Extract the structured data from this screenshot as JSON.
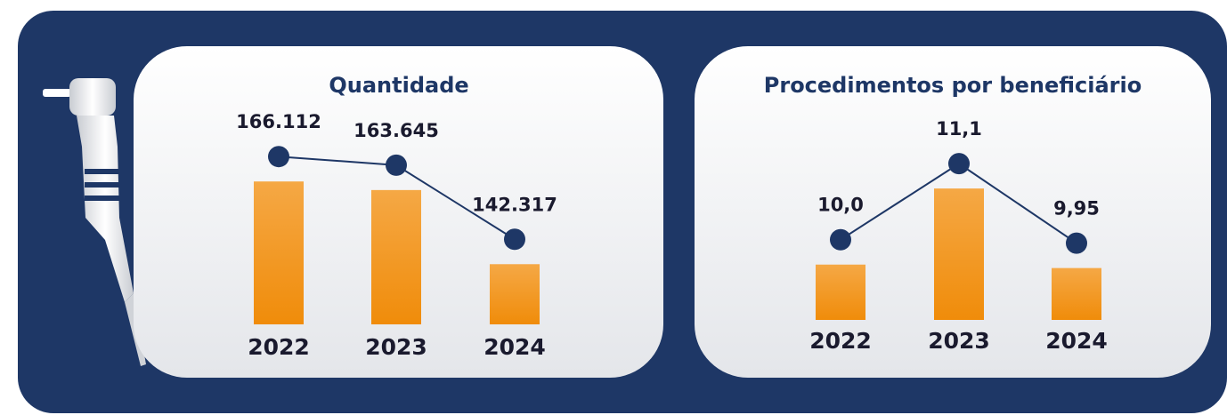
{
  "chart_data": [
    {
      "type": "bar",
      "title": "Quantidade",
      "categories": [
        "2022",
        "2023",
        "2024"
      ],
      "values": [
        166112,
        163645,
        142317
      ],
      "value_labels": [
        "166.112",
        "163.645",
        "142.317"
      ],
      "color": "#f39c25",
      "line_color": "#1e3766",
      "ylim": [
        125000,
        170000
      ]
    },
    {
      "type": "bar",
      "title": "Procedimentos por beneficiário",
      "categories": [
        "2022",
        "2023",
        "2024"
      ],
      "values": [
        10.0,
        11.1,
        9.95
      ],
      "value_labels": [
        "10,0",
        "11,1",
        "9,95"
      ],
      "color": "#f39c25",
      "line_color": "#1e3766",
      "ylim": [
        9.2,
        11.5
      ]
    }
  ]
}
